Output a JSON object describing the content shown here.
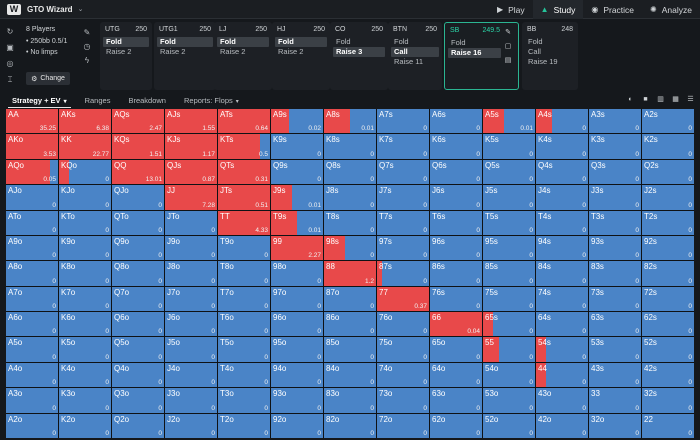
{
  "topbar": {
    "brand": "GTO Wizard",
    "nav": [
      {
        "label": "Play",
        "icon": "play-icon",
        "glyph": "▶",
        "active": false
      },
      {
        "label": "Study",
        "icon": "graduation-cap-icon",
        "glyph": "▲",
        "active": true
      },
      {
        "label": "Practice",
        "icon": "controller-icon",
        "glyph": "◉",
        "active": false
      },
      {
        "label": "Analyze",
        "icon": "bulb-icon",
        "glyph": "✺",
        "active": false
      }
    ]
  },
  "settings": {
    "players": "8 Players",
    "stakes": "250bb 0.5/1",
    "limps": "No limps",
    "change_label": "Change"
  },
  "positions": [
    {
      "name": "UTG",
      "stack": "250",
      "actions": [
        "Fold",
        "Raise 2"
      ],
      "selected": 0
    },
    {
      "name": "UTG1",
      "stack": "250",
      "actions": [
        "Fold",
        "Raise 2"
      ],
      "selected": 0
    },
    {
      "name": "LJ",
      "stack": "250",
      "actions": [
        "Fold",
        "Raise 2"
      ],
      "selected": 0
    },
    {
      "name": "HJ",
      "stack": "250",
      "actions": [
        "Fold",
        "Raise 2"
      ],
      "selected": 0
    },
    {
      "name": "CO",
      "stack": "250",
      "actions": [
        "Fold",
        "Raise 3"
      ],
      "selected": 1
    },
    {
      "name": "BTN",
      "stack": "250",
      "actions": [
        "Fold",
        "Call",
        "Raise 11"
      ],
      "selected": 1
    },
    {
      "name": "SB",
      "stack": "249.5",
      "actions": [
        "Fold",
        "Raise 16"
      ],
      "selected": 1,
      "active": true
    },
    {
      "name": "BB",
      "stack": "248",
      "actions": [
        "Fold",
        "Call",
        "Raise 19"
      ],
      "selected": -1
    }
  ],
  "tabs": [
    {
      "label": "Strategy + EV",
      "active": true
    },
    {
      "label": "Ranges",
      "active": false
    },
    {
      "label": "Breakdown",
      "active": false
    },
    {
      "label": "Reports: Flops",
      "active": false
    }
  ],
  "colors": {
    "raise": "#e8494a",
    "fold": "#4a84c7"
  },
  "grid": {
    "ranks": [
      "A",
      "K",
      "Q",
      "J",
      "T",
      "9",
      "8",
      "7",
      "6",
      "5",
      "4",
      "3",
      "2"
    ],
    "raise": {
      "AA": [
        1,
        "35.25"
      ],
      "AKs": [
        1,
        "6.38"
      ],
      "AQs": [
        1,
        "2.47"
      ],
      "AJs": [
        1,
        "1.55"
      ],
      "ATs": [
        1,
        "0.64"
      ],
      "A9s": [
        0.35,
        "0.02"
      ],
      "A8s": [
        0.5,
        "0.01"
      ],
      "A5s": [
        0.4,
        "0.01"
      ],
      "A4s": [
        0.3,
        "0"
      ],
      "AKo": [
        1,
        "3.53"
      ],
      "KK": [
        1,
        "22.77"
      ],
      "KQs": [
        1,
        "1.51"
      ],
      "KJs": [
        1,
        "1.17"
      ],
      "KTs": [
        0.8,
        "0.5"
      ],
      "AQo": [
        0.85,
        "0.05"
      ],
      "KQo": [
        0.2,
        "0"
      ],
      "QQ": [
        1,
        "13.01"
      ],
      "QJs": [
        1,
        "0.87"
      ],
      "QTs": [
        1,
        "0.31"
      ],
      "JJ": [
        1,
        "7.28"
      ],
      "JTs": [
        1,
        "0.51"
      ],
      "J9s": [
        0.4,
        "0.01"
      ],
      "TT": [
        1,
        "4.33"
      ],
      "T9s": [
        0.5,
        "0.01"
      ],
      "99": [
        1,
        "2.27"
      ],
      "98s": [
        0.4,
        "0"
      ],
      "88": [
        1,
        "1.2"
      ],
      "87s": [
        0.1,
        "0"
      ],
      "77": [
        1,
        "0.37"
      ],
      "66": [
        1,
        "0.04"
      ],
      "65s": [
        0.2,
        "0"
      ],
      "55": [
        0.3,
        "0"
      ],
      "54s": [
        0.2,
        "0"
      ],
      "44": [
        0.2,
        "0"
      ]
    }
  }
}
